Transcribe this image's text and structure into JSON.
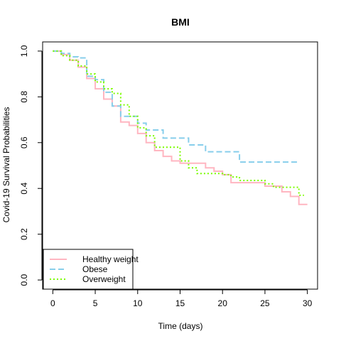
{
  "chart_data": {
    "type": "line",
    "step": true,
    "title": "BMI",
    "xlabel": "Time (days)",
    "ylabel": "Covid-19 Survival Probabilities",
    "xlim": [
      -1.2,
      31.2
    ],
    "ylim": [
      -0.04,
      1.04
    ],
    "xticks": [
      0,
      5,
      10,
      15,
      20,
      25,
      30
    ],
    "yticks": [
      0.0,
      0.2,
      0.4,
      0.6,
      0.8,
      1.0
    ],
    "ytick_labels": [
      "0.0",
      "0.2",
      "0.4",
      "0.6",
      "0.8",
      "1.0"
    ],
    "grid": false,
    "legend_position": "bottom-left",
    "series": [
      {
        "name": "Healthy weight",
        "color": "#FFB6C1",
        "dash": "solid",
        "points": [
          [
            0,
            1.0
          ],
          [
            1,
            0.985
          ],
          [
            2,
            0.96
          ],
          [
            3,
            0.93
          ],
          [
            4,
            0.88
          ],
          [
            5,
            0.835
          ],
          [
            6,
            0.79
          ],
          [
            7,
            0.76
          ],
          [
            8,
            0.69
          ],
          [
            9,
            0.675
          ],
          [
            10,
            0.64
          ],
          [
            11,
            0.6
          ],
          [
            12,
            0.565
          ],
          [
            13,
            0.54
          ],
          [
            14,
            0.52
          ],
          [
            15,
            0.51
          ],
          [
            18,
            0.49
          ],
          [
            19,
            0.475
          ],
          [
            20,
            0.46
          ],
          [
            21,
            0.425
          ],
          [
            25,
            0.41
          ],
          [
            27,
            0.385
          ],
          [
            28,
            0.365
          ],
          [
            29,
            0.33
          ],
          [
            30,
            0.33
          ]
        ]
      },
      {
        "name": "Obese",
        "color": "#87CEEB",
        "dash": "dashed",
        "points": [
          [
            0,
            1.0
          ],
          [
            1,
            0.99
          ],
          [
            2,
            0.975
          ],
          [
            3,
            0.97
          ],
          [
            4,
            0.89
          ],
          [
            5,
            0.875
          ],
          [
            6,
            0.82
          ],
          [
            7,
            0.76
          ],
          [
            8,
            0.715
          ],
          [
            10,
            0.685
          ],
          [
            11,
            0.655
          ],
          [
            13,
            0.62
          ],
          [
            16,
            0.59
          ],
          [
            18,
            0.56
          ],
          [
            22,
            0.515
          ],
          [
            29,
            0.515
          ]
        ]
      },
      {
        "name": "Overweight",
        "color": "#7CFC00",
        "dash": "dotted",
        "points": [
          [
            0,
            1.0
          ],
          [
            1,
            0.98
          ],
          [
            2,
            0.96
          ],
          [
            3,
            0.935
          ],
          [
            4,
            0.9
          ],
          [
            5,
            0.865
          ],
          [
            6,
            0.835
          ],
          [
            7,
            0.815
          ],
          [
            8,
            0.765
          ],
          [
            9,
            0.715
          ],
          [
            10,
            0.665
          ],
          [
            11,
            0.63
          ],
          [
            12,
            0.58
          ],
          [
            15,
            0.52
          ],
          [
            16,
            0.49
          ],
          [
            17,
            0.465
          ],
          [
            20,
            0.46
          ],
          [
            21,
            0.45
          ],
          [
            22,
            0.435
          ],
          [
            25,
            0.42
          ],
          [
            26,
            0.405
          ],
          [
            29,
            0.37
          ],
          [
            29.6,
            0.37
          ]
        ]
      }
    ]
  }
}
